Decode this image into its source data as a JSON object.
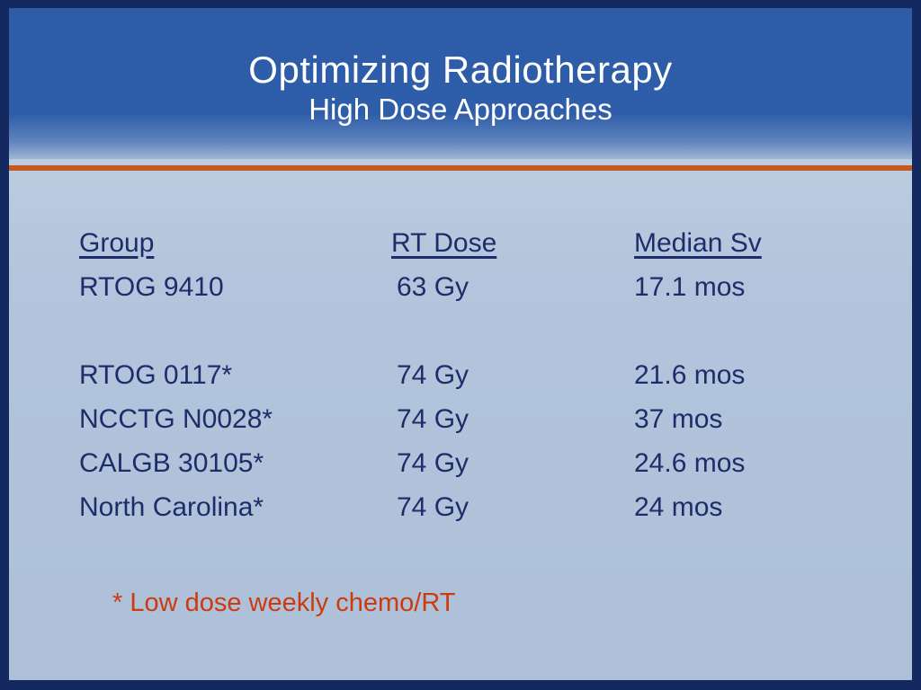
{
  "slide": {
    "title": "Optimizing Radiotherapy",
    "subtitle": "High Dose Approaches",
    "table": {
      "headers": [
        "Group",
        "RT Dose",
        "Median Sv"
      ],
      "rows": [
        {
          "group": "RTOG 9410",
          "dose": "63 Gy",
          "median": "17.1 mos"
        },
        {
          "group": "RTOG 0117*",
          "dose": "74 Gy",
          "median": "21.6 mos"
        },
        {
          "group": "NCCTG N0028*",
          "dose": "74 Gy",
          "median": "37 mos"
        },
        {
          "group": "CALGB 30105*",
          "dose": "74 Gy",
          "median": "24.6 mos"
        },
        {
          "group": "North Carolina*",
          "dose": "74 Gy",
          "median": "24 mos"
        }
      ]
    },
    "footnote": "* Low dose weekly chemo/RT",
    "colors": {
      "frame_navy": "#14295f",
      "header_blue": "#2d5ca8",
      "body_light_blue": "#b2c5dc",
      "accent_orange": "#c65a1e",
      "text_navy": "#1e2d69",
      "footnote_orange": "#cc3b0e",
      "title_white": "#ffffff"
    }
  }
}
